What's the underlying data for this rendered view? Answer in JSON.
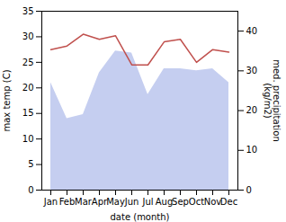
{
  "chart_data": {
    "type": "line",
    "categories": [
      "Jan",
      "Feb",
      "Mar",
      "Apr",
      "May",
      "Jun",
      "Jul",
      "Aug",
      "Sep",
      "Oct",
      "Nov",
      "Dec"
    ],
    "xlabel": "date (month)",
    "ylabel": "max temp (C)",
    "y2label": "med. precipitation\n(kg/m2)",
    "series": [
      {
        "type": "area",
        "axis": "y2",
        "color": "#c5cef0",
        "values": [
          27.0,
          18.0,
          19.0,
          29.5,
          35.0,
          34.5,
          24.0,
          30.5,
          30.5,
          30.0,
          30.5,
          27.0
        ]
      },
      {
        "type": "line",
        "color": "#c0504d",
        "values": [
          27.5,
          28.2,
          30.5,
          29.5,
          30.2,
          24.5,
          24.5,
          29.0,
          29.5,
          25.0,
          27.5,
          27.0
        ]
      }
    ],
    "ylim": [
      0,
      35
    ],
    "yticks": [
      0,
      5,
      10,
      15,
      20,
      25,
      30,
      35
    ],
    "y2lim": [
      0,
      45
    ],
    "y2ticks": [
      0,
      10,
      20,
      30,
      40
    ],
    "grid": false
  }
}
